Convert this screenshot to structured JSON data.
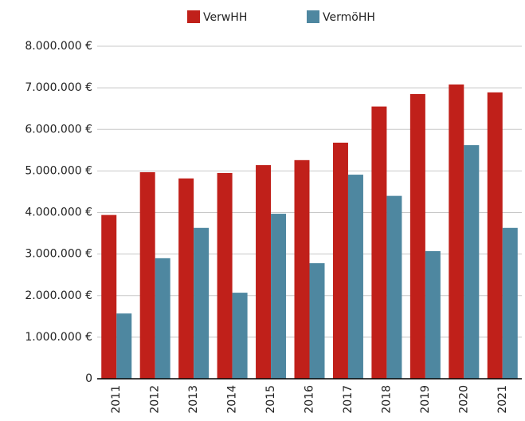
{
  "chart_data": {
    "type": "bar",
    "categories": [
      "2011",
      "2012",
      "2013",
      "2014",
      "2015",
      "2016",
      "2017",
      "2018",
      "2019",
      "2020",
      "2021"
    ],
    "series": [
      {
        "name": "VerwHH",
        "color": "#c0201a",
        "values": [
          3940000,
          4970000,
          4820000,
          4950000,
          5140000,
          5260000,
          5680000,
          6550000,
          6850000,
          7080000,
          6890000
        ]
      },
      {
        "name": "VermöHH",
        "color": "#4e87a0",
        "values": [
          1570000,
          2900000,
          3630000,
          2070000,
          3970000,
          2780000,
          4910000,
          4400000,
          3070000,
          5620000,
          3630000
        ]
      }
    ],
    "ylim": [
      0,
      8000000
    ],
    "yticks": [
      0,
      {
        "value": 1000000,
        "label": "1.000.000 €"
      },
      {
        "value": 2000000,
        "label": "2.000.000 €"
      },
      {
        "value": 3000000,
        "label": "3.000.000 €"
      },
      {
        "value": 4000000,
        "label": "4.000.000 €"
      },
      {
        "value": 5000000,
        "label": "5.000.000 €"
      },
      {
        "value": 6000000,
        "label": "6.000.000 €"
      },
      {
        "value": 7000000,
        "label": "7.000.000 €"
      },
      {
        "value": 8000000,
        "label": "8.000.000 €"
      }
    ],
    "grid": true,
    "legend": "top"
  }
}
